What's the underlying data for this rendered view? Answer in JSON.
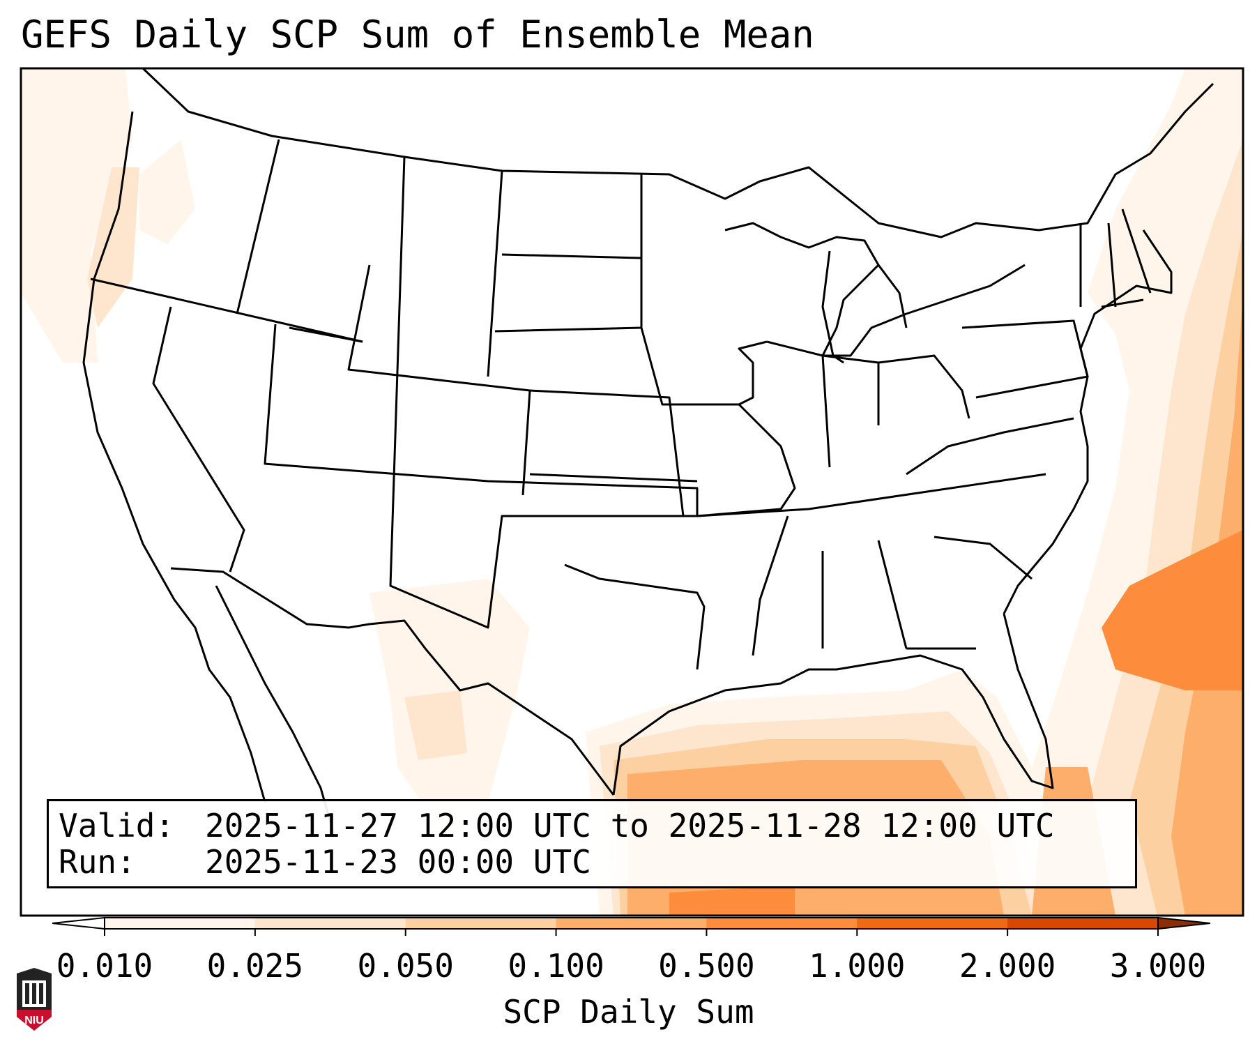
{
  "title": "GEFS Daily SCP Sum of Ensemble Mean",
  "info": {
    "valid_key": "Valid:",
    "valid_value": "2025-11-27 12:00 UTC to 2025-11-28 12:00 UTC",
    "run_key": "Run:",
    "run_value": "2025-11-23 00:00 UTC"
  },
  "colorbar": {
    "label": "SCP Daily Sum",
    "ticks": [
      "0.010",
      "0.025",
      "0.050",
      "0.100",
      "0.500",
      "1.000",
      "2.000",
      "3.000"
    ],
    "colors": [
      "#fff5eb",
      "#fee6ce",
      "#fdd0a2",
      "#fdae6b",
      "#fd8d3c",
      "#f16913",
      "#d94801"
    ],
    "under_color": "#ffffff",
    "over_color": "#8c2d04",
    "extend": "both"
  },
  "logo": {
    "text": "NIU",
    "color": "#c8102e"
  },
  "map": {
    "projection": "Lambert Conformal Conic",
    "region": "CONUS",
    "boundaries": "state and country borders",
    "max_region": "western Atlantic east of the Carolinas"
  }
}
